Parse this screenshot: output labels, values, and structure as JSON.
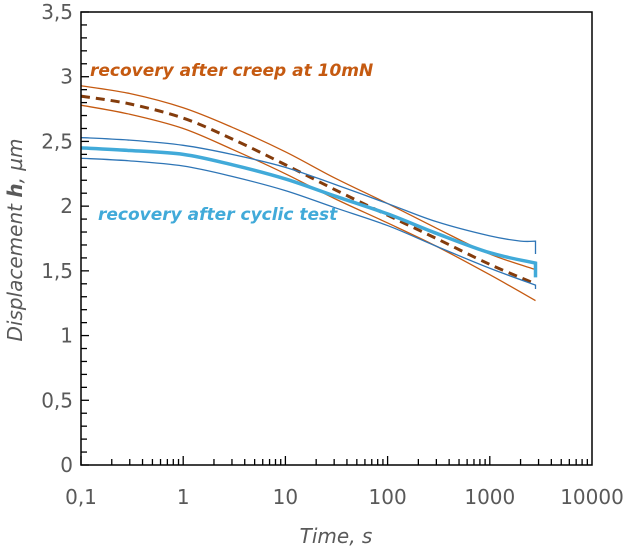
{
  "chart_data": {
    "type": "line",
    "xlabel": "Time, s",
    "ylabel_parts": [
      "Displacement ",
      "h",
      ", µm"
    ],
    "x_scale": "log",
    "xlim": [
      0.1,
      10000
    ],
    "ylim": [
      0,
      3.5
    ],
    "x_ticks": [
      "0,1",
      "1",
      "10",
      "100",
      "1000",
      "10000"
    ],
    "x_tick_values": [
      0.1,
      1,
      10,
      100,
      1000,
      10000
    ],
    "y_ticks": [
      "0",
      "0,5",
      "1",
      "1,5",
      "2",
      "2,5",
      "3",
      "3,5"
    ],
    "y_tick_values": [
      0,
      0.5,
      1,
      1.5,
      2,
      2.5,
      3,
      3.5
    ],
    "grid": false,
    "annotations": [
      {
        "text": "recovery after creep at 10mN",
        "color": "#C55A11"
      },
      {
        "text": "recovery after cyclic test",
        "color": "#41AAD9"
      }
    ],
    "series": [
      {
        "group": "creep",
        "role": "upper bound",
        "color": "#C55A11",
        "style": "solid-thin",
        "x": [
          0.1,
          0.3,
          1,
          3,
          10,
          30,
          100,
          300,
          1000,
          2800
        ],
        "y": [
          2.93,
          2.87,
          2.76,
          2.61,
          2.42,
          2.22,
          2.02,
          1.83,
          1.63,
          1.51
        ]
      },
      {
        "group": "creep",
        "role": "mean",
        "color": "#843C0C",
        "style": "dashed",
        "x": [
          0.1,
          0.3,
          1,
          3,
          10,
          30,
          100,
          300,
          1000,
          2800
        ],
        "y": [
          2.85,
          2.79,
          2.68,
          2.52,
          2.32,
          2.13,
          1.93,
          1.75,
          1.55,
          1.4
        ]
      },
      {
        "group": "creep",
        "role": "lower bound",
        "color": "#C55A11",
        "style": "solid-thin",
        "x": [
          0.1,
          0.3,
          1,
          3,
          10,
          30,
          100,
          300,
          1000,
          2800
        ],
        "y": [
          2.78,
          2.71,
          2.6,
          2.44,
          2.25,
          2.06,
          1.87,
          1.69,
          1.47,
          1.27
        ]
      },
      {
        "group": "cyclic",
        "role": "upper bound",
        "color": "#2E75B6",
        "style": "solid-thin",
        "x": [
          0.1,
          0.3,
          1,
          3,
          10,
          30,
          100,
          300,
          1000,
          2000,
          2800,
          2800
        ],
        "y": [
          2.53,
          2.51,
          2.47,
          2.4,
          2.3,
          2.17,
          2.02,
          1.88,
          1.77,
          1.73,
          1.73,
          1.63
        ]
      },
      {
        "group": "cyclic",
        "role": "mean",
        "color": "#41AAD9",
        "style": "solid-thick",
        "x": [
          0.1,
          0.3,
          1,
          3,
          10,
          30,
          100,
          300,
          1000,
          2800,
          2800
        ],
        "y": [
          2.45,
          2.43,
          2.4,
          2.32,
          2.21,
          2.08,
          1.94,
          1.79,
          1.64,
          1.56,
          1.45
        ]
      },
      {
        "group": "cyclic",
        "role": "lower bound",
        "color": "#2E75B6",
        "style": "solid-thin",
        "x": [
          0.1,
          0.3,
          1,
          3,
          10,
          30,
          100,
          300,
          1000,
          2800,
          2800
        ],
        "y": [
          2.37,
          2.35,
          2.31,
          2.23,
          2.12,
          1.99,
          1.85,
          1.69,
          1.52,
          1.39,
          1.36
        ]
      }
    ]
  }
}
